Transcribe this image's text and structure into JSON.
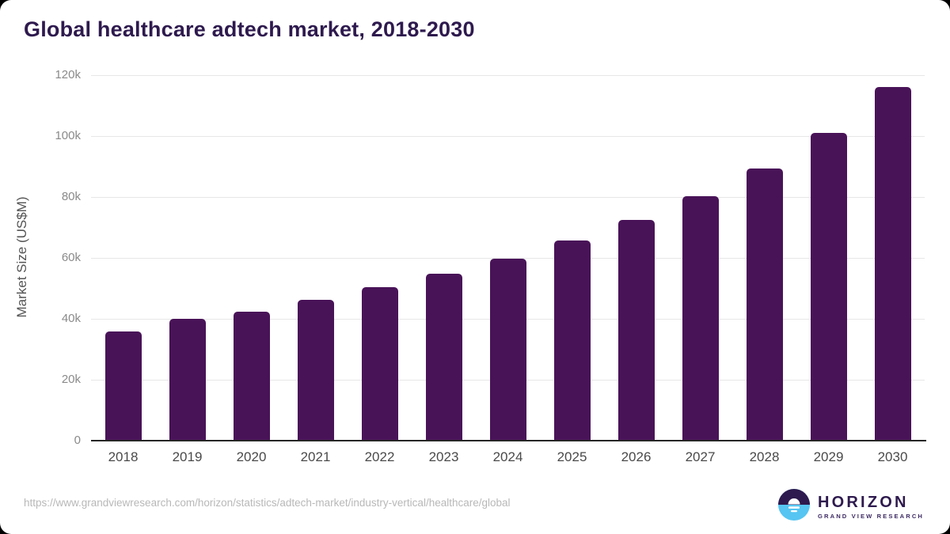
{
  "page": {
    "title": "Global healthcare adtech market, 2018-2030",
    "source_url": "https://www.grandviewresearch.com/horizon/statistics/adtech-market/industry-vertical/healthcare/global"
  },
  "logo": {
    "name": "HORIZON",
    "subtitle": "GRAND VIEW RESEARCH"
  },
  "colors": {
    "bar": "#491358",
    "title": "#2e1a4e",
    "gridline": "#e7e7e7",
    "axis_line": "#262626",
    "logo_blue": "#56c5f2"
  },
  "chart_data": {
    "type": "bar",
    "title": "Global healthcare adtech market, 2018-2030",
    "categories": [
      "2018",
      "2019",
      "2020",
      "2021",
      "2022",
      "2023",
      "2024",
      "2025",
      "2026",
      "2027",
      "2028",
      "2029",
      "2030"
    ],
    "values": [
      35500,
      39800,
      42200,
      46000,
      50200,
      54600,
      59600,
      65500,
      72300,
      80100,
      89000,
      100800,
      115800
    ],
    "xlabel": "",
    "ylabel": "Market Size (US$M)",
    "ylim": [
      0,
      120000
    ],
    "yticks": [
      0,
      20000,
      40000,
      60000,
      80000,
      100000,
      120000
    ],
    "ytick_labels": [
      "0",
      "20k",
      "40k",
      "60k",
      "80k",
      "100k",
      "120k"
    ],
    "grid": "horizontal",
    "legend": "none",
    "bar_color": "#491358"
  }
}
